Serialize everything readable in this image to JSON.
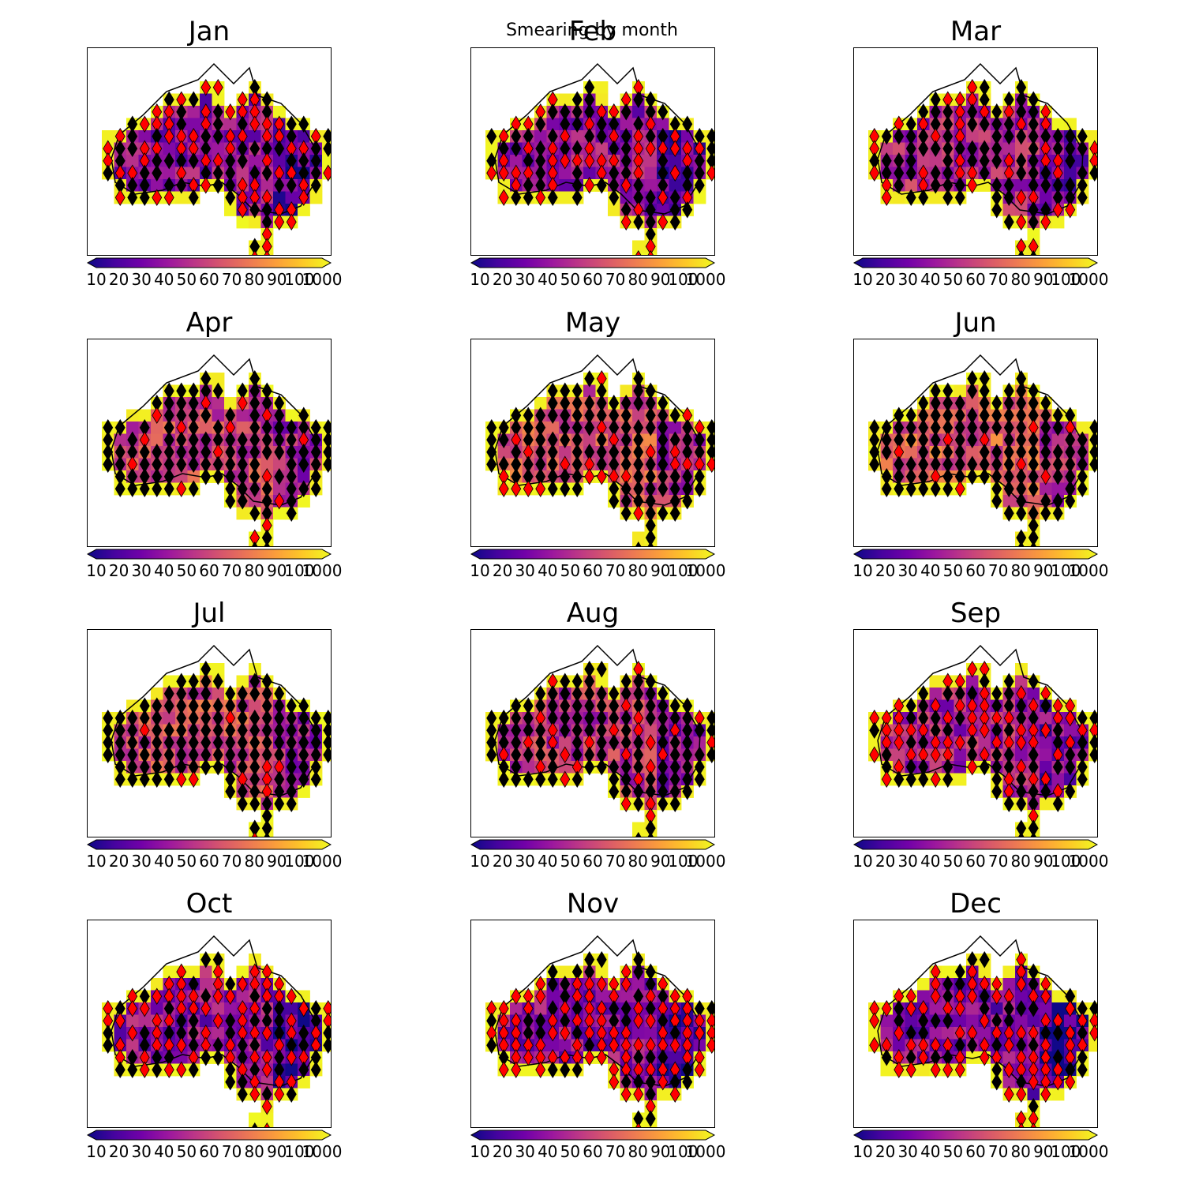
{
  "figure": {
    "suptitle": "Smearing by month"
  },
  "chart_data": {
    "type": "heatmap",
    "region": "Australia",
    "colormap": "plasma",
    "colorbar": {
      "ticks": [
        "10",
        "20",
        "30",
        "40",
        "50",
        "60",
        "70",
        "80",
        "90",
        "100",
        "1000"
      ],
      "extend": "both",
      "min_color": "#0d0887",
      "max_color": "#f0f921"
    },
    "marker_colors": {
      "black": "#000000",
      "red": "#ff0000"
    },
    "panels": [
      {
        "title": "Jan",
        "level": 0.3,
        "black_share": 0.35,
        "red_share": 0.45
      },
      {
        "title": "Feb",
        "level": 0.32,
        "black_share": 0.38,
        "red_share": 0.42
      },
      {
        "title": "Mar",
        "level": 0.38,
        "black_share": 0.55,
        "red_share": 0.3
      },
      {
        "title": "Apr",
        "level": 0.5,
        "black_share": 0.75,
        "red_share": 0.12
      },
      {
        "title": "May",
        "level": 0.55,
        "black_share": 0.8,
        "red_share": 0.1
      },
      {
        "title": "Jun",
        "level": 0.58,
        "black_share": 0.85,
        "red_share": 0.06
      },
      {
        "title": "Jul",
        "level": 0.52,
        "black_share": 0.78,
        "red_share": 0.12
      },
      {
        "title": "Aug",
        "level": 0.45,
        "black_share": 0.7,
        "red_share": 0.18
      },
      {
        "title": "Sep",
        "level": 0.38,
        "black_share": 0.55,
        "red_share": 0.3
      },
      {
        "title": "Oct",
        "level": 0.3,
        "black_share": 0.4,
        "red_share": 0.45
      },
      {
        "title": "Nov",
        "level": 0.28,
        "black_share": 0.3,
        "red_share": 0.55
      },
      {
        "title": "Dec",
        "level": 0.27,
        "black_share": 0.3,
        "red_share": 0.55
      }
    ]
  }
}
